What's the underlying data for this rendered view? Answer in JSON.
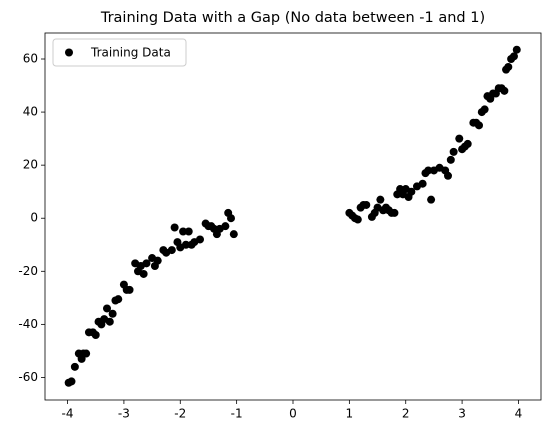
{
  "chart_data": {
    "type": "scatter",
    "title": "Training Data with a Gap (No data between -1 and 1)",
    "x": [
      -3.98,
      -3.93,
      -3.87,
      -3.8,
      -3.75,
      -3.72,
      -3.67,
      -3.62,
      -3.55,
      -3.5,
      -3.45,
      -3.4,
      -3.35,
      -3.3,
      -3.25,
      -3.2,
      -3.15,
      -3.1,
      -3.0,
      -2.95,
      -2.9,
      -2.8,
      -2.75,
      -2.7,
      -2.65,
      -2.6,
      -2.5,
      -2.45,
      -2.4,
      -2.3,
      -2.25,
      -2.15,
      -2.1,
      -2.05,
      -2.0,
      -1.95,
      -1.9,
      -1.85,
      -1.8,
      -1.75,
      -1.65,
      -1.55,
      -1.5,
      -1.45,
      -1.4,
      -1.35,
      -1.3,
      -1.2,
      -1.15,
      -1.1,
      -1.05,
      1.0,
      1.05,
      1.1,
      1.15,
      1.2,
      1.25,
      1.3,
      1.4,
      1.45,
      1.5,
      1.55,
      1.6,
      1.65,
      1.7,
      1.75,
      1.8,
      1.85,
      1.9,
      1.95,
      2.0,
      2.05,
      2.1,
      2.2,
      2.3,
      2.35,
      2.4,
      2.45,
      2.5,
      2.6,
      2.7,
      2.75,
      2.8,
      2.85,
      2.95,
      3.0,
      3.05,
      3.1,
      3.2,
      3.25,
      3.3,
      3.35,
      3.4,
      3.45,
      3.5,
      3.55,
      3.6,
      3.65,
      3.7,
      3.75,
      3.78,
      3.82,
      3.87,
      3.92,
      3.97
    ],
    "series": [
      {
        "name": "Training Data",
        "color": "#000000",
        "values": [
          -62,
          -61.5,
          -56,
          -51,
          -53,
          -51,
          -51,
          -43,
          -43,
          -44,
          -39,
          -40,
          -38,
          -34,
          -39,
          -36,
          -31,
          -30.5,
          -25,
          -27,
          -27,
          -17,
          -20,
          -18,
          -21,
          -17,
          -15,
          -18,
          -16,
          -12,
          -13,
          -12,
          -3.5,
          -9,
          -11,
          -5,
          -10,
          -5,
          -10,
          -9,
          -8,
          -2,
          -3,
          -3,
          -4,
          -6,
          -4,
          -3,
          2,
          0,
          -6,
          2,
          1,
          0,
          -0.5,
          4,
          5,
          5,
          0.5,
          2,
          4,
          7,
          3,
          4,
          3,
          2,
          2,
          9,
          11,
          9,
          11,
          8,
          10,
          12,
          13,
          17,
          18,
          7,
          18,
          19,
          18,
          16,
          22,
          25,
          30,
          26,
          27,
          28,
          36,
          36,
          35,
          40,
          41,
          46,
          45,
          47,
          47,
          49,
          49,
          48,
          56,
          57,
          60,
          61,
          63.5
        ]
      }
    ],
    "xlim": [
      -4.4,
      4.4
    ],
    "xticks": [
      -4,
      -3,
      -2,
      -1,
      0,
      1,
      2,
      3,
      4
    ],
    "ylim": [
      -68.5,
      69.8
    ],
    "yticks": [
      -60,
      -40,
      -20,
      0,
      20,
      40,
      60
    ],
    "legend": "upper left"
  }
}
